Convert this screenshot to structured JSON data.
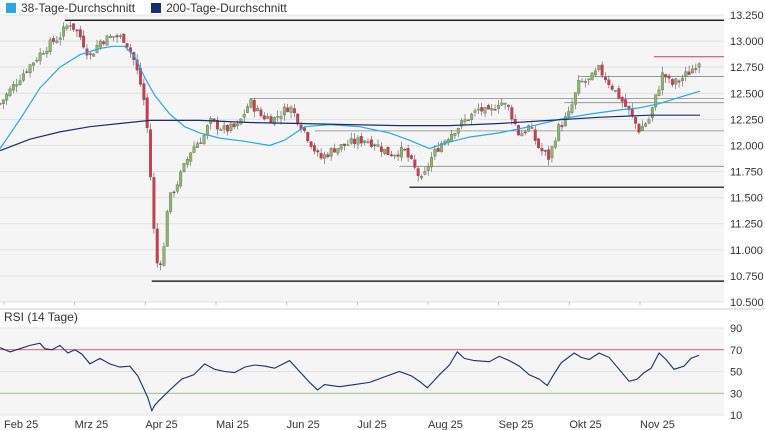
{
  "legend": [
    {
      "label": "38-Tage-Durchschnitt",
      "color": "#29a9e0"
    },
    {
      "label": "200-Tage-Durchschnitt",
      "color": "#1a2e6e"
    }
  ],
  "colors": {
    "up": "#8cb66a",
    "down": "#d9364e",
    "sma38": "#29a9e0",
    "sma200": "#1a2e6e",
    "rsi": "#1a2e6e",
    "rsi_upper": "#d9364e",
    "rsi_lower": "#8cb66a",
    "resistance": "#d9364e",
    "level": "#000000"
  },
  "chart_data": [
    {
      "type": "candlestick",
      "title": "",
      "x_ticks": [
        "Feb 25",
        "Mrz 25",
        "Apr 25",
        "Mai 25",
        "Jun 25",
        "Jul 25",
        "Aug 25",
        "Sep 25",
        "Okt 25",
        "Nov 25"
      ],
      "y_ticks": [
        "13.250",
        "13.000",
        "12.750",
        "12.500",
        "12.250",
        "12.000",
        "11.750",
        "11.500",
        "11.250",
        "11.000",
        "10.750",
        "10.500"
      ],
      "ylim": [
        10.5,
        13.25
      ],
      "grid": true,
      "legend_position": "top-left",
      "series": [
        {
          "name": "38-Tage-Durchschnitt",
          "kind": "line",
          "points": [
            [
              0,
              11.97
            ],
            [
              20,
              12.25
            ],
            [
              40,
              12.55
            ],
            [
              60,
              12.75
            ],
            [
              80,
              12.87
            ],
            [
              100,
              12.93
            ],
            [
              113,
              12.95
            ],
            [
              125,
              12.95
            ],
            [
              135,
              12.85
            ],
            [
              145,
              12.65
            ],
            [
              155,
              12.48
            ],
            [
              170,
              12.3
            ],
            [
              185,
              12.18
            ],
            [
              200,
              12.12
            ],
            [
              220,
              12.07
            ],
            [
              245,
              12.04
            ],
            [
              270,
              12.0
            ],
            [
              285,
              12.05
            ],
            [
              305,
              12.18
            ],
            [
              330,
              12.2
            ],
            [
              360,
              12.18
            ],
            [
              390,
              12.12
            ],
            [
              410,
              12.05
            ],
            [
              430,
              11.97
            ],
            [
              445,
              12.02
            ],
            [
              470,
              12.08
            ],
            [
              500,
              12.12
            ],
            [
              530,
              12.18
            ],
            [
              560,
              12.25
            ],
            [
              590,
              12.3
            ],
            [
              620,
              12.34
            ],
            [
              640,
              12.36
            ],
            [
              660,
              12.4
            ],
            [
              680,
              12.46
            ],
            [
              701,
              12.52
            ]
          ]
        },
        {
          "name": "200-Tage-Durchschnitt",
          "kind": "line",
          "points": [
            [
              0,
              11.95
            ],
            [
              30,
              12.06
            ],
            [
              60,
              12.13
            ],
            [
              90,
              12.18
            ],
            [
              120,
              12.21
            ],
            [
              150,
              12.24
            ],
            [
              200,
              12.24
            ],
            [
              250,
              12.22
            ],
            [
              300,
              12.21
            ],
            [
              350,
              12.2
            ],
            [
              400,
              12.19
            ],
            [
              450,
              12.19
            ],
            [
              500,
              12.21
            ],
            [
              550,
              12.24
            ],
            [
              600,
              12.27
            ],
            [
              650,
              12.29
            ],
            [
              701,
              12.29
            ]
          ]
        },
        {
          "name": "Kurs",
          "kind": "candles",
          "open": 12.4,
          "close": 12.82,
          "path": [
            [
              0,
              12.4
            ],
            [
              22,
              12.68
            ],
            [
              45,
              12.93
            ],
            [
              60,
              13.05
            ],
            [
              70,
              13.18
            ],
            [
              80,
              13.05
            ],
            [
              90,
              12.85
            ],
            [
              100,
              13.0
            ],
            [
              115,
              13.05
            ],
            [
              125,
              13.02
            ],
            [
              133,
              12.85
            ],
            [
              140,
              12.62
            ],
            [
              146,
              12.35
            ],
            [
              150,
              11.82
            ],
            [
              154,
              11.2
            ],
            [
              158,
              10.82
            ],
            [
              164,
              11.0
            ],
            [
              168,
              11.45
            ],
            [
              178,
              11.65
            ],
            [
              192,
              11.97
            ],
            [
              205,
              12.1
            ],
            [
              210,
              12.23
            ],
            [
              225,
              12.15
            ],
            [
              238,
              12.18
            ],
            [
              250,
              12.42
            ],
            [
              262,
              12.28
            ],
            [
              275,
              12.26
            ],
            [
              290,
              12.38
            ],
            [
              300,
              12.22
            ],
            [
              310,
              12.05
            ],
            [
              320,
              11.87
            ],
            [
              335,
              11.97
            ],
            [
              350,
              12.02
            ],
            [
              365,
              12.06
            ],
            [
              375,
              12.02
            ],
            [
              390,
              11.92
            ],
            [
              405,
              11.95
            ],
            [
              415,
              11.78
            ],
            [
              423,
              11.65
            ],
            [
              430,
              11.85
            ],
            [
              440,
              12.0
            ],
            [
              455,
              12.15
            ],
            [
              470,
              12.27
            ],
            [
              480,
              12.35
            ],
            [
              490,
              12.3
            ],
            [
              500,
              12.43
            ],
            [
              510,
              12.35
            ],
            [
              520,
              12.1
            ],
            [
              530,
              12.18
            ],
            [
              540,
              11.97
            ],
            [
              550,
              11.88
            ],
            [
              558,
              12.15
            ],
            [
              570,
              12.3
            ],
            [
              580,
              12.6
            ],
            [
              590,
              12.62
            ],
            [
              600,
              12.73
            ],
            [
              610,
              12.6
            ],
            [
              620,
              12.47
            ],
            [
              630,
              12.32
            ],
            [
              640,
              12.15
            ],
            [
              650,
              12.25
            ],
            [
              658,
              12.5
            ],
            [
              664,
              12.7
            ],
            [
              672,
              12.58
            ],
            [
              680,
              12.62
            ],
            [
              690,
              12.7
            ],
            [
              701,
              12.82
            ]
          ]
        }
      ],
      "levels": [
        {
          "kind": "resistance",
          "value": 12.85,
          "x_start": 655
        },
        {
          "kind": "level",
          "value": 11.6,
          "x_start": 410
        },
        {
          "kind": "level",
          "value": 10.7,
          "x_start": 152
        },
        {
          "kind": "level",
          "value": 13.2,
          "x_start": 65
        },
        {
          "kind": "minor",
          "value": 12.66,
          "x_start": 580
        },
        {
          "kind": "minor",
          "value": 12.45,
          "x_start": 250
        },
        {
          "kind": "minor",
          "value": 12.41,
          "x_start": 565
        },
        {
          "kind": "minor",
          "value": 12.14,
          "x_start": 315
        },
        {
          "kind": "minor",
          "value": 11.8,
          "x_start": 400
        }
      ]
    },
    {
      "type": "line",
      "title": "RSI (14 Tage)",
      "y_ticks": [
        "90",
        "70",
        "50",
        "30",
        "10"
      ],
      "ylim": [
        10,
        90
      ],
      "bands": [
        70,
        30
      ],
      "series": [
        {
          "name": "RSI (14 Tage)",
          "points": [
            [
              0,
              72
            ],
            [
              10,
              68
            ],
            [
              20,
              71
            ],
            [
              30,
              74
            ],
            [
              40,
              76
            ],
            [
              45,
              71
            ],
            [
              52,
              70
            ],
            [
              60,
              74
            ],
            [
              68,
              67
            ],
            [
              75,
              70
            ],
            [
              82,
              66
            ],
            [
              90,
              57
            ],
            [
              100,
              62
            ],
            [
              110,
              57
            ],
            [
              120,
              54
            ],
            [
              130,
              55
            ],
            [
              138,
              46
            ],
            [
              144,
              34
            ],
            [
              148,
              26
            ],
            [
              152,
              14
            ],
            [
              155,
              19
            ],
            [
              160,
              24
            ],
            [
              170,
              33
            ],
            [
              182,
              43
            ],
            [
              194,
              47
            ],
            [
              205,
              57
            ],
            [
              215,
              52
            ],
            [
              225,
              50
            ],
            [
              235,
              49
            ],
            [
              245,
              54
            ],
            [
              255,
              56
            ],
            [
              265,
              55
            ],
            [
              275,
              53
            ],
            [
              290,
              60
            ],
            [
              300,
              50
            ],
            [
              310,
              40
            ],
            [
              318,
              33
            ],
            [
              325,
              38
            ],
            [
              340,
              36
            ],
            [
              355,
              38
            ],
            [
              370,
              40
            ],
            [
              385,
              45
            ],
            [
              400,
              50
            ],
            [
              412,
              46
            ],
            [
              420,
              41
            ],
            [
              428,
              35
            ],
            [
              440,
              47
            ],
            [
              450,
              56
            ],
            [
              458,
              68
            ],
            [
              465,
              62
            ],
            [
              475,
              60
            ],
            [
              490,
              59
            ],
            [
              500,
              64
            ],
            [
              510,
              60
            ],
            [
              520,
              55
            ],
            [
              530,
              47
            ],
            [
              540,
              43
            ],
            [
              548,
              37
            ],
            [
              555,
              48
            ],
            [
              562,
              58
            ],
            [
              575,
              67
            ],
            [
              582,
              63
            ],
            [
              590,
              61
            ],
            [
              600,
              67
            ],
            [
              610,
              63
            ],
            [
              620,
              52
            ],
            [
              630,
              41
            ],
            [
              638,
              43
            ],
            [
              645,
              49
            ],
            [
              652,
              53
            ],
            [
              660,
              67
            ],
            [
              667,
              61
            ],
            [
              675,
              52
            ],
            [
              685,
              55
            ],
            [
              692,
              62
            ],
            [
              700,
              65
            ]
          ]
        }
      ]
    }
  ],
  "axes": {
    "x_ticks": [
      "Feb 25",
      "Mrz 25",
      "Apr 25",
      "Mai 25",
      "Jun 25",
      "Jul 25",
      "Aug 25",
      "Sep 25",
      "Okt 25",
      "Nov 25"
    ],
    "price_ticks": [
      "13.250",
      "13.000",
      "12.750",
      "12.500",
      "12.250",
      "12.000",
      "11.750",
      "11.500",
      "11.250",
      "11.000",
      "10.750",
      "10.500"
    ],
    "rsi_ticks": [
      "90",
      "70",
      "50",
      "30",
      "10"
    ],
    "rsi_title": "RSI (14 Tage)"
  }
}
